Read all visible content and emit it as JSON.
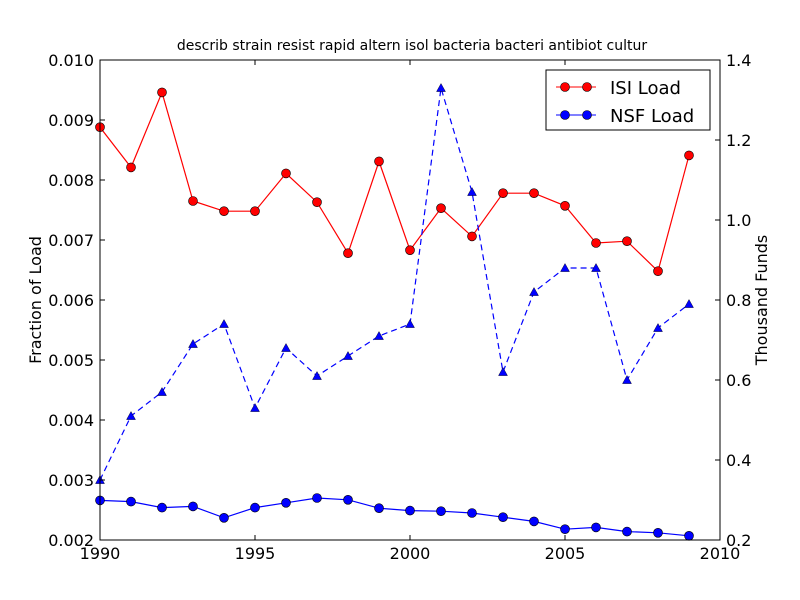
{
  "chart_data": {
    "type": "line",
    "title": "describ strain resist rapid altern isol bacteria bacteri antibiot cultur",
    "xlabel": "",
    "ylabel_left": "Fraction of Load",
    "ylabel_right": "Thousand Funds",
    "xlim": [
      1990,
      2010
    ],
    "ylim_left": [
      0.002,
      0.01
    ],
    "ylim_right": [
      0.2,
      1.4
    ],
    "x_ticks": [
      "1990",
      "1995",
      "2000",
      "2005",
      "2010"
    ],
    "y_left_ticks": [
      "0.002",
      "0.003",
      "0.004",
      "0.005",
      "0.006",
      "0.007",
      "0.008",
      "0.009",
      "0.010"
    ],
    "y_right_ticks": [
      "0.2",
      "0.4",
      "0.6",
      "0.8",
      "1.0",
      "1.2",
      "1.4"
    ],
    "grid": false,
    "legend_position": "top-right",
    "x": [
      1990,
      1991,
      1992,
      1993,
      1994,
      1995,
      1996,
      1997,
      1998,
      1999,
      2000,
      2001,
      2002,
      2003,
      2004,
      2005,
      2006,
      2007,
      2008,
      2009
    ],
    "series": [
      {
        "name": "ISI Load",
        "axis": "left",
        "color": "#ff0000",
        "style": "solid",
        "marker": "circle",
        "values": [
          0.00888,
          0.00821,
          0.00946,
          0.00765,
          0.00748,
          0.00748,
          0.00811,
          0.00763,
          0.00678,
          0.00831,
          0.00683,
          0.00753,
          0.00706,
          0.00778,
          0.00778,
          0.00757,
          0.00695,
          0.00698,
          0.00648,
          0.00841
        ]
      },
      {
        "name": "NSF Load",
        "axis": "left",
        "color": "#0000ff",
        "style": "solid",
        "marker": "circle",
        "values": [
          0.00266,
          0.00264,
          0.00254,
          0.00256,
          0.00237,
          0.00254,
          0.00262,
          0.0027,
          0.00267,
          0.00253,
          0.00249,
          0.00248,
          0.00245,
          0.00238,
          0.00231,
          0.00218,
          0.00221,
          0.00214,
          0.00212,
          0.00207
        ]
      },
      {
        "axis": "right",
        "color": "#0000ff",
        "style": "dashed",
        "marker": "triangle",
        "values": [
          0.35,
          0.51,
          0.57,
          0.69,
          0.74,
          0.53,
          0.68,
          0.61,
          0.66,
          0.71,
          0.74,
          1.33,
          1.07,
          0.62,
          0.82,
          0.88,
          0.88,
          0.6,
          0.73,
          0.79
        ]
      }
    ]
  }
}
